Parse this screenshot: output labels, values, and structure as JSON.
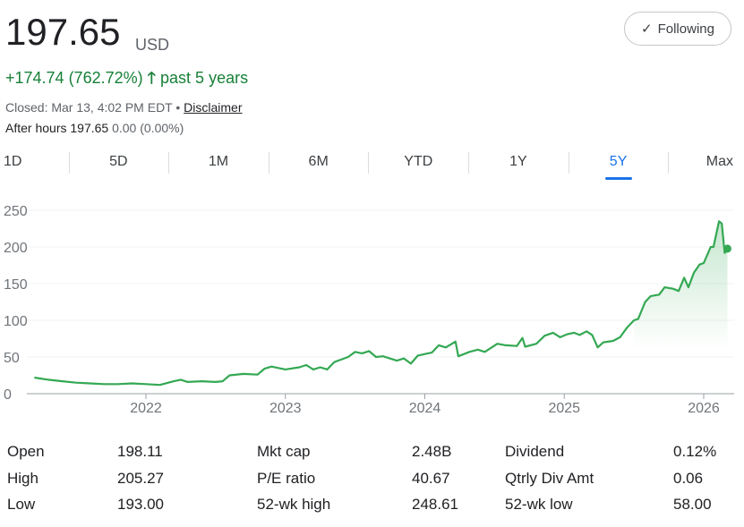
{
  "quote": {
    "price": "197.65",
    "currency": "USD",
    "change": "+174.74 (762.72%)",
    "change_period": "past 5 years",
    "status": "Closed: Mar 13, 4:02 PM EDT",
    "separator": "•",
    "disclaimer": "Disclaimer",
    "after_hours_label": "After hours",
    "after_hours_price": "197.65",
    "after_hours_change": "0.00 (0.00%)"
  },
  "follow_button": {
    "label": "Following",
    "icon": "check-icon"
  },
  "tabs": [
    {
      "label": "1D"
    },
    {
      "label": "5D"
    },
    {
      "label": "1M"
    },
    {
      "label": "6M"
    },
    {
      "label": "YTD"
    },
    {
      "label": "1Y"
    },
    {
      "label": "5Y",
      "active": true
    },
    {
      "label": "Max"
    }
  ],
  "colors": {
    "up": "#188038",
    "line": "#34a853",
    "accent": "#1a73e8"
  },
  "chart_data": {
    "type": "area",
    "ylim": [
      0,
      250
    ],
    "yticks": [
      "0",
      "50",
      "100",
      "150",
      "200",
      "250"
    ],
    "xticks": [
      "2022",
      "2023",
      "2024",
      "2025",
      "2026"
    ],
    "grid": true,
    "points": [
      [
        2021.2,
        22
      ],
      [
        2021.3,
        19
      ],
      [
        2021.4,
        17
      ],
      [
        2021.5,
        15
      ],
      [
        2021.6,
        14
      ],
      [
        2021.7,
        13
      ],
      [
        2021.8,
        13
      ],
      [
        2021.9,
        14
      ],
      [
        2022.0,
        13
      ],
      [
        2022.1,
        12
      ],
      [
        2022.2,
        17
      ],
      [
        2022.25,
        19
      ],
      [
        2022.3,
        16
      ],
      [
        2022.4,
        17
      ],
      [
        2022.5,
        16
      ],
      [
        2022.55,
        17
      ],
      [
        2022.6,
        25
      ],
      [
        2022.7,
        27
      ],
      [
        2022.8,
        26
      ],
      [
        2022.85,
        34
      ],
      [
        2022.9,
        37
      ],
      [
        2023.0,
        33
      ],
      [
        2023.1,
        36
      ],
      [
        2023.15,
        39
      ],
      [
        2023.2,
        33
      ],
      [
        2023.25,
        36
      ],
      [
        2023.3,
        33
      ],
      [
        2023.35,
        43
      ],
      [
        2023.45,
        50
      ],
      [
        2023.5,
        57
      ],
      [
        2023.55,
        55
      ],
      [
        2023.6,
        58
      ],
      [
        2023.65,
        50
      ],
      [
        2023.7,
        51
      ],
      [
        2023.8,
        45
      ],
      [
        2023.85,
        48
      ],
      [
        2023.9,
        41
      ],
      [
        2023.95,
        52
      ],
      [
        2024.0,
        54
      ],
      [
        2024.05,
        56
      ],
      [
        2024.1,
        66
      ],
      [
        2024.15,
        63
      ],
      [
        2024.22,
        71
      ],
      [
        2024.24,
        51
      ],
      [
        2024.32,
        57
      ],
      [
        2024.38,
        60
      ],
      [
        2024.43,
        57
      ],
      [
        2024.52,
        68
      ],
      [
        2024.58,
        66
      ],
      [
        2024.66,
        65
      ],
      [
        2024.7,
        76
      ],
      [
        2024.72,
        64
      ],
      [
        2024.8,
        68
      ],
      [
        2024.86,
        79
      ],
      [
        2024.92,
        83
      ],
      [
        2024.97,
        77
      ],
      [
        2025.02,
        81
      ],
      [
        2025.07,
        83
      ],
      [
        2025.11,
        80
      ],
      [
        2025.16,
        85
      ],
      [
        2025.2,
        80
      ],
      [
        2025.24,
        63
      ],
      [
        2025.28,
        70
      ],
      [
        2025.35,
        72
      ],
      [
        2025.4,
        77
      ],
      [
        2025.45,
        90
      ],
      [
        2025.5,
        100
      ],
      [
        2025.53,
        102
      ],
      [
        2025.58,
        125
      ],
      [
        2025.62,
        133
      ],
      [
        2025.68,
        135
      ],
      [
        2025.72,
        145
      ],
      [
        2025.78,
        143
      ],
      [
        2025.82,
        140
      ],
      [
        2025.86,
        158
      ],
      [
        2025.89,
        145
      ],
      [
        2025.93,
        165
      ],
      [
        2025.97,
        176
      ],
      [
        2026.0,
        178
      ],
      [
        2026.05,
        200
      ],
      [
        2026.07,
        200
      ],
      [
        2026.11,
        235
      ],
      [
        2026.13,
        232
      ],
      [
        2026.15,
        192
      ],
      [
        2026.17,
        197.65
      ]
    ]
  },
  "stats": [
    [
      {
        "label": "Open",
        "value": "198.11"
      },
      {
        "label": "Mkt cap",
        "value": "2.48B"
      },
      {
        "label": "Dividend",
        "value": "0.12%"
      }
    ],
    [
      {
        "label": "High",
        "value": "205.27"
      },
      {
        "label": "P/E ratio",
        "value": "40.67"
      },
      {
        "label": "Qtrly Div Amt",
        "value": "0.06"
      }
    ],
    [
      {
        "label": "Low",
        "value": "193.00"
      },
      {
        "label": "52-wk high",
        "value": "248.61"
      },
      {
        "label": "52-wk low",
        "value": "58.00"
      }
    ]
  ]
}
